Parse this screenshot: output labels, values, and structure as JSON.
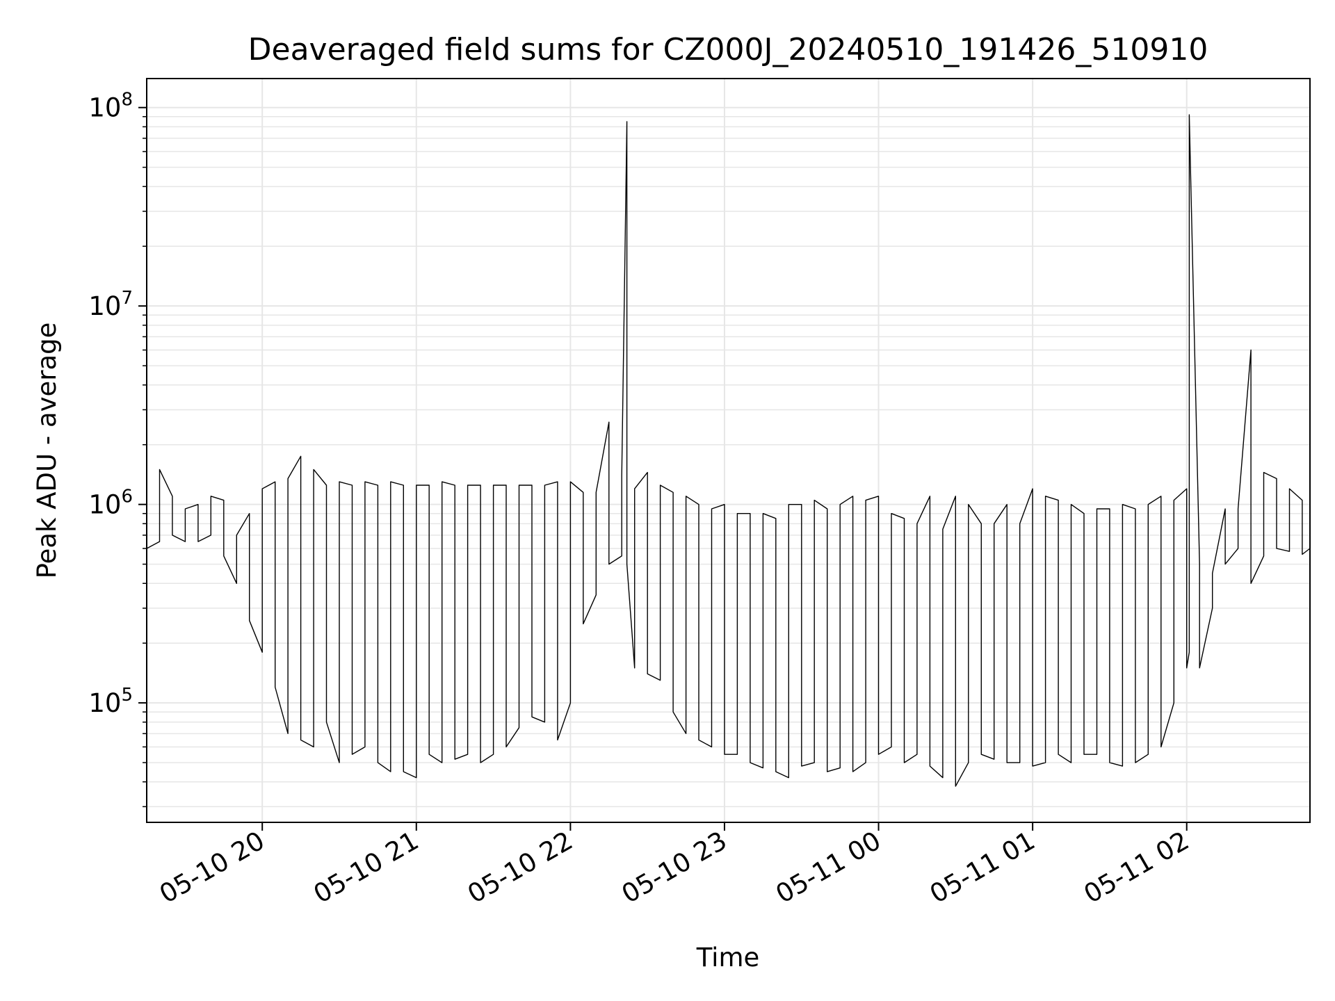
{
  "chart_data": {
    "type": "line",
    "title": "Deaveraged field sums for CZ000J_20240510_191426_510910",
    "xlabel": "Time",
    "ylabel": "Peak ADU - average",
    "yscale": "log",
    "ylim": [
      25000,
      140000000
    ],
    "xlim": [
      "2024-05-10 19:15",
      "2024-05-11 02:48"
    ],
    "grid": true,
    "line_color": "#000000",
    "grid_color": "#e6e6e6",
    "xticks": [
      {
        "value": "2024-05-10 20:00",
        "label": "05-10 20"
      },
      {
        "value": "2024-05-10 21:00",
        "label": "05-10 21"
      },
      {
        "value": "2024-05-10 22:00",
        "label": "05-10 22"
      },
      {
        "value": "2024-05-10 23:00",
        "label": "05-10 23"
      },
      {
        "value": "2024-05-11 00:00",
        "label": "05-11 00"
      },
      {
        "value": "2024-05-11 01:00",
        "label": "05-11 01"
      },
      {
        "value": "2024-05-11 02:00",
        "label": "05-11 02"
      }
    ],
    "yticks": [
      {
        "value": 100000,
        "base": "10",
        "exp": "5"
      },
      {
        "value": 1000000,
        "base": "10",
        "exp": "6"
      },
      {
        "value": 10000000,
        "base": "10",
        "exp": "7"
      },
      {
        "value": 100000000,
        "base": "10",
        "exp": "8"
      }
    ],
    "series": [
      {
        "x": [
          "2024-05-10 19:15",
          "2024-05-10 19:20",
          "2024-05-10 19:25",
          "2024-05-10 19:30",
          "2024-05-10 19:35",
          "2024-05-10 19:40",
          "2024-05-10 19:45",
          "2024-05-10 19:50",
          "2024-05-10 19:55",
          "2024-05-10 20:00",
          "2024-05-10 20:05",
          "2024-05-10 20:10",
          "2024-05-10 20:15",
          "2024-05-10 20:20",
          "2024-05-10 20:25",
          "2024-05-10 20:30",
          "2024-05-10 20:35",
          "2024-05-10 20:40",
          "2024-05-10 20:45",
          "2024-05-10 20:50",
          "2024-05-10 20:55",
          "2024-05-10 21:00",
          "2024-05-10 21:05",
          "2024-05-10 21:10",
          "2024-05-10 21:15",
          "2024-05-10 21:20",
          "2024-05-10 21:25",
          "2024-05-10 21:30",
          "2024-05-10 21:35",
          "2024-05-10 21:40",
          "2024-05-10 21:45",
          "2024-05-10 21:50",
          "2024-05-10 21:55",
          "2024-05-10 22:00",
          "2024-05-10 22:05",
          "2024-05-10 22:10",
          "2024-05-10 22:15",
          "2024-05-10 22:20",
          "2024-05-10 22:22",
          "2024-05-10 22:25",
          "2024-05-10 22:30",
          "2024-05-10 22:35",
          "2024-05-10 22:40",
          "2024-05-10 22:45",
          "2024-05-10 22:50",
          "2024-05-10 22:55",
          "2024-05-10 23:00",
          "2024-05-10 23:05",
          "2024-05-10 23:10",
          "2024-05-10 23:15",
          "2024-05-10 23:20",
          "2024-05-10 23:25",
          "2024-05-10 23:30",
          "2024-05-10 23:35",
          "2024-05-10 23:40",
          "2024-05-10 23:45",
          "2024-05-10 23:50",
          "2024-05-10 23:55",
          "2024-05-11 00:00",
          "2024-05-11 00:05",
          "2024-05-11 00:10",
          "2024-05-11 00:15",
          "2024-05-11 00:20",
          "2024-05-11 00:25",
          "2024-05-11 00:30",
          "2024-05-11 00:35",
          "2024-05-11 00:40",
          "2024-05-11 00:45",
          "2024-05-11 00:50",
          "2024-05-11 00:55",
          "2024-05-11 01:00",
          "2024-05-11 01:05",
          "2024-05-11 01:10",
          "2024-05-11 01:15",
          "2024-05-11 01:20",
          "2024-05-11 01:25",
          "2024-05-11 01:30",
          "2024-05-11 01:35",
          "2024-05-11 01:40",
          "2024-05-11 01:45",
          "2024-05-11 01:50",
          "2024-05-11 01:55",
          "2024-05-11 02:00",
          "2024-05-11 02:01",
          "2024-05-11 02:05",
          "2024-05-11 02:10",
          "2024-05-11 02:15",
          "2024-05-11 02:20",
          "2024-05-11 02:25",
          "2024-05-11 02:30",
          "2024-05-11 02:35",
          "2024-05-11 02:40",
          "2024-05-11 02:45",
          "2024-05-11 02:48"
        ],
        "y_max": [
          900000,
          1500000,
          1100000,
          950000,
          1000000,
          1100000,
          1050000,
          700000,
          900000,
          1200000,
          1300000,
          1350000,
          1750000,
          1500000,
          1250000,
          1300000,
          1250000,
          1300000,
          1250000,
          1300000,
          1250000,
          1250000,
          1250000,
          1300000,
          1250000,
          1250000,
          1250000,
          1250000,
          1250000,
          1250000,
          1250000,
          1250000,
          1300000,
          1300000,
          1150000,
          1150000,
          2600000,
          1400000,
          85000000,
          1200000,
          1450000,
          1250000,
          1150000,
          1100000,
          1000000,
          950000,
          1000000,
          900000,
          900000,
          900000,
          850000,
          1000000,
          1000000,
          1050000,
          950000,
          1000000,
          1100000,
          1050000,
          1100000,
          900000,
          850000,
          800000,
          1100000,
          750000,
          1100000,
          1000000,
          800000,
          800000,
          1000000,
          800000,
          1200000,
          1100000,
          1050000,
          1000000,
          900000,
          950000,
          950000,
          1000000,
          950000,
          1000000,
          1100000,
          1050000,
          1200000,
          92000000,
          500000,
          450000,
          950000,
          950000,
          6000000,
          1450000,
          1350000,
          1200000,
          1050000,
          950000
        ],
        "y_min": [
          600000,
          650000,
          700000,
          650000,
          650000,
          700000,
          550000,
          400000,
          260000,
          180000,
          120000,
          70000,
          65000,
          60000,
          80000,
          50000,
          55000,
          60000,
          50000,
          45000,
          45000,
          42000,
          55000,
          50000,
          52000,
          55000,
          50000,
          55000,
          60000,
          75000,
          85000,
          80000,
          65000,
          100000,
          250000,
          350000,
          500000,
          550000,
          500000,
          150000,
          140000,
          130000,
          90000,
          70000,
          65000,
          60000,
          55000,
          55000,
          50000,
          47000,
          45000,
          42000,
          48000,
          50000,
          45000,
          47000,
          45000,
          50000,
          55000,
          60000,
          50000,
          55000,
          48000,
          42000,
          38000,
          50000,
          55000,
          52000,
          50000,
          50000,
          48000,
          50000,
          55000,
          50000,
          55000,
          55000,
          50000,
          48000,
          50000,
          55000,
          60000,
          100000,
          150000,
          180000,
          150000,
          300000,
          500000,
          600000,
          400000,
          550000,
          600000,
          580000,
          560000,
          600000
        ]
      }
    ]
  }
}
